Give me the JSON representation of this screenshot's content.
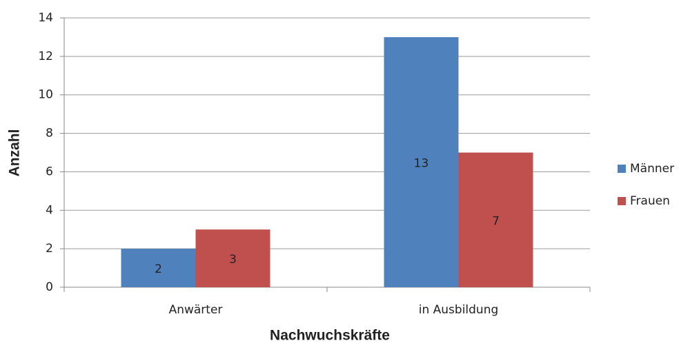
{
  "chart_data": {
    "type": "bar",
    "categories": [
      "Anwärter",
      "in Ausbildung"
    ],
    "series": [
      {
        "name": "Männer",
        "color": "#4f81bd",
        "values": [
          2,
          13
        ]
      },
      {
        "name": "Frauen",
        "color": "#c0504d",
        "values": [
          3,
          7
        ]
      }
    ],
    "ylim": [
      0,
      14
    ],
    "yticks": [
      0,
      2,
      4,
      6,
      8,
      10,
      12,
      14
    ],
    "y_label": "Anzahl",
    "x_label": "Nachwuchskräfte",
    "grid": true,
    "legend": "right",
    "data_labels": true
  }
}
